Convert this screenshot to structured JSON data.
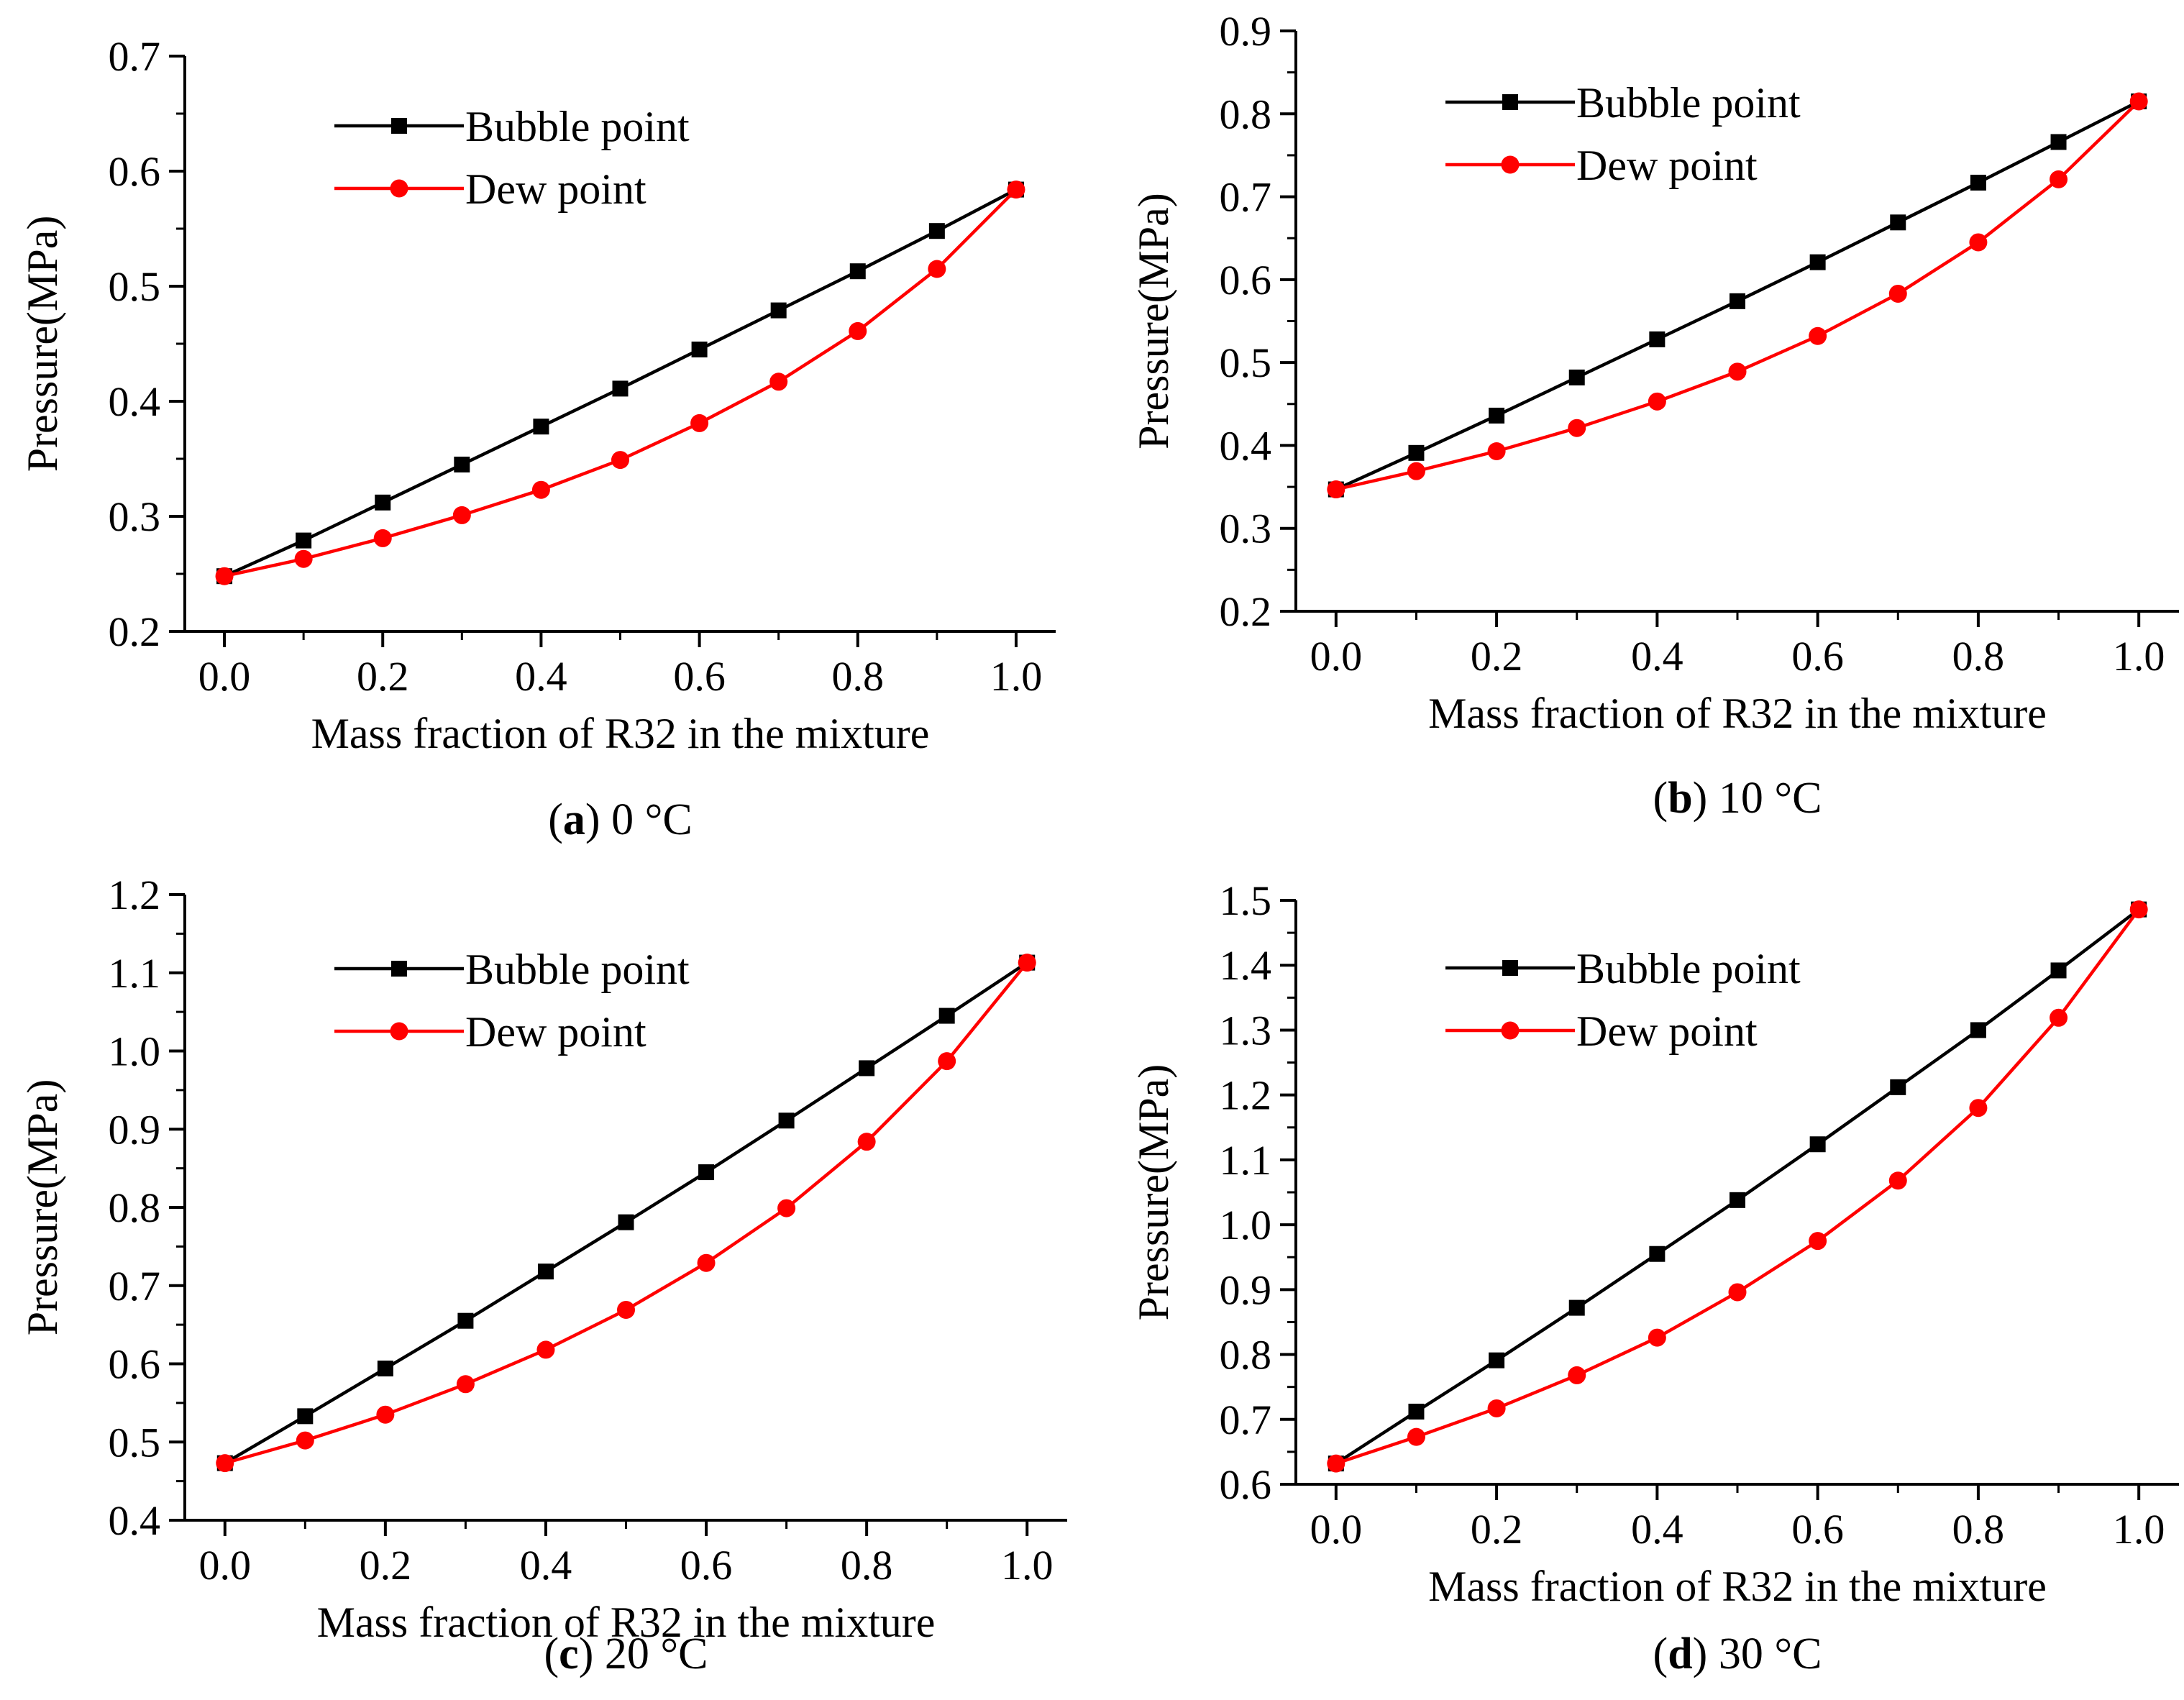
{
  "chart_data": [
    {
      "type": "line",
      "caption_letter": "a",
      "caption_text": "0 °C",
      "xlabel": "Mass fraction of R32 in the mixture",
      "ylabel": "Pressure(MPa)",
      "xlim": [
        -0.05,
        1.05
      ],
      "ylim": [
        0.2,
        0.7
      ],
      "xticks": [
        "0.0",
        "0.2",
        "0.4",
        "0.6",
        "0.8",
        "1.0"
      ],
      "yticks": [
        "0.2",
        "0.3",
        "0.4",
        "0.5",
        "0.6",
        "0.7"
      ],
      "legend_position": "top-left",
      "x": [
        0.0,
        0.1,
        0.2,
        0.3,
        0.4,
        0.5,
        0.6,
        0.7,
        0.8,
        0.9,
        1.0
      ],
      "series": [
        {
          "name": "Bubble point",
          "color": "#000000",
          "marker": "square",
          "values": [
            0.248,
            0.279,
            0.312,
            0.345,
            0.378,
            0.411,
            0.445,
            0.479,
            0.513,
            0.548,
            0.584
          ]
        },
        {
          "name": "Dew point",
          "color": "#ff0000",
          "marker": "circle",
          "values": [
            0.248,
            0.263,
            0.281,
            0.301,
            0.323,
            0.349,
            0.381,
            0.417,
            0.461,
            0.515,
            0.584
          ]
        }
      ]
    },
    {
      "type": "line",
      "caption_letter": "b",
      "caption_text": "10 °C",
      "xlabel": "Mass fraction of R32 in the mixture",
      "ylabel": "Pressure(MPa)",
      "xlim": [
        -0.05,
        1.05
      ],
      "ylim": [
        0.2,
        0.9
      ],
      "xticks": [
        "0.0",
        "0.2",
        "0.4",
        "0.6",
        "0.8",
        "1.0"
      ],
      "yticks": [
        "0.2",
        "0.3",
        "0.4",
        "0.5",
        "0.6",
        "0.7",
        "0.8",
        "0.9"
      ],
      "legend_position": "top-left",
      "x": [
        0.0,
        0.1,
        0.2,
        0.3,
        0.4,
        0.5,
        0.6,
        0.7,
        0.8,
        0.9,
        1.0
      ],
      "series": [
        {
          "name": "Bubble point",
          "color": "#000000",
          "marker": "square",
          "values": [
            0.347,
            0.391,
            0.436,
            0.482,
            0.528,
            0.574,
            0.621,
            0.669,
            0.717,
            0.766,
            0.815
          ]
        },
        {
          "name": "Dew point",
          "color": "#ff0000",
          "marker": "circle",
          "values": [
            0.347,
            0.369,
            0.393,
            0.421,
            0.453,
            0.489,
            0.532,
            0.583,
            0.645,
            0.721,
            0.815
          ]
        }
      ]
    },
    {
      "type": "line",
      "caption_letter": "c",
      "caption_text": "20 °C",
      "xlabel": "Mass fraction of R32 in the mixture",
      "ylabel": "Pressure(MPa)",
      "xlim": [
        -0.05,
        1.05
      ],
      "ylim": [
        0.4,
        1.2
      ],
      "xticks": [
        "0.0",
        "0.2",
        "0.4",
        "0.6",
        "0.8",
        "1.0"
      ],
      "yticks": [
        "0.4",
        "0.5",
        "0.6",
        "0.7",
        "0.8",
        "0.9",
        "1.0",
        "1.1",
        "1.2"
      ],
      "legend_position": "top-left",
      "x": [
        0.0,
        0.1,
        0.2,
        0.3,
        0.4,
        0.5,
        0.6,
        0.7,
        0.8,
        0.9,
        1.0
      ],
      "series": [
        {
          "name": "Bubble point",
          "color": "#000000",
          "marker": "square",
          "values": [
            0.473,
            0.533,
            0.594,
            0.655,
            0.718,
            0.781,
            0.845,
            0.911,
            0.978,
            1.045,
            1.113
          ]
        },
        {
          "name": "Dew point",
          "color": "#ff0000",
          "marker": "circle",
          "values": [
            0.473,
            0.502,
            0.535,
            0.574,
            0.618,
            0.669,
            0.729,
            0.799,
            0.884,
            0.987,
            1.113
          ]
        }
      ]
    },
    {
      "type": "line",
      "caption_letter": "d",
      "caption_text": "30 °C",
      "xlabel": "Mass fraction of R32 in the mixture",
      "ylabel": "Pressure(MPa)",
      "xlim": [
        -0.05,
        1.05
      ],
      "ylim": [
        0.6,
        1.5
      ],
      "xticks": [
        "0.0",
        "0.2",
        "0.4",
        "0.6",
        "0.8",
        "1.0"
      ],
      "yticks": [
        "0.6",
        "0.7",
        "0.8",
        "0.9",
        "1.0",
        "1.1",
        "1.2",
        "1.3",
        "1.4",
        "1.5"
      ],
      "legend_position": "top-left",
      "x": [
        0.0,
        0.1,
        0.2,
        0.3,
        0.4,
        0.5,
        0.6,
        0.7,
        0.8,
        0.9,
        1.0
      ],
      "series": [
        {
          "name": "Bubble point",
          "color": "#000000",
          "marker": "square",
          "values": [
            0.632,
            0.712,
            0.791,
            0.872,
            0.955,
            1.038,
            1.124,
            1.212,
            1.3,
            1.392,
            1.486
          ]
        },
        {
          "name": "Dew point",
          "color": "#ff0000",
          "marker": "circle",
          "values": [
            0.632,
            0.673,
            0.717,
            0.768,
            0.826,
            0.896,
            0.975,
            1.068,
            1.18,
            1.319,
            1.486
          ]
        }
      ]
    }
  ]
}
